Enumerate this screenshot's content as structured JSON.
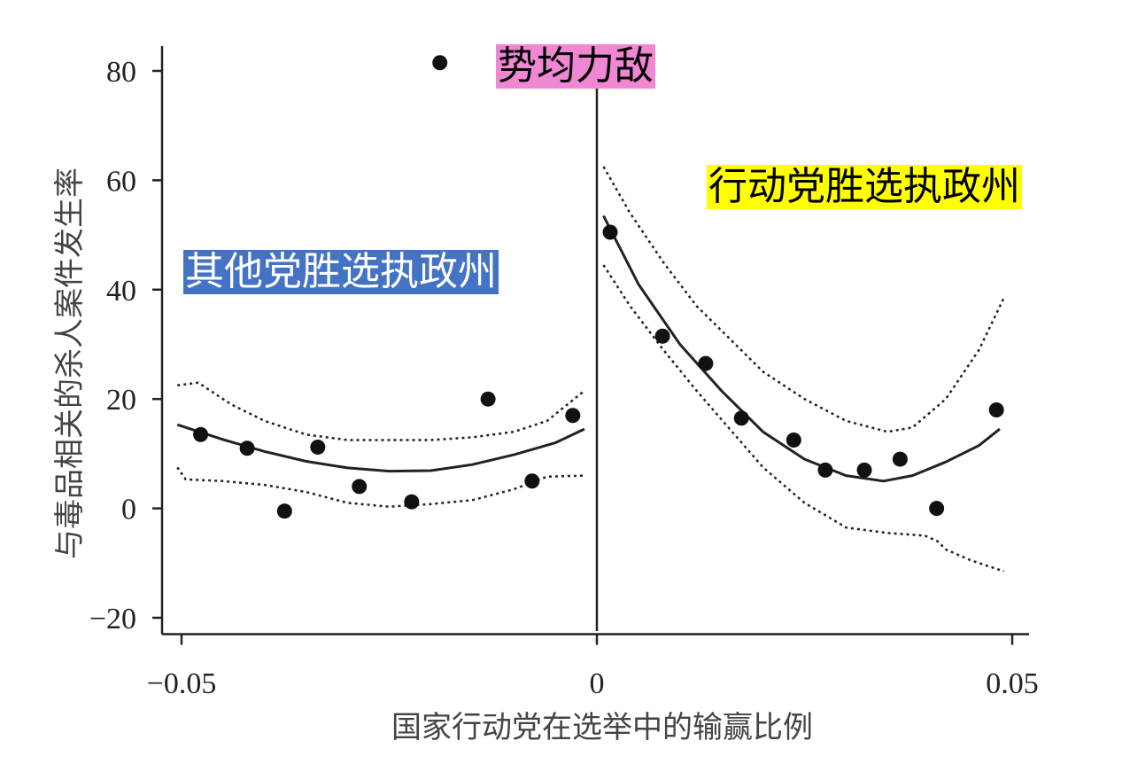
{
  "chart_data": {
    "type": "scatter",
    "title": "",
    "xlabel": "国家行动党在选举中的输赢比例",
    "ylabel": "与毒品相关的杀人案件发生率",
    "xlim": [
      -0.052,
      0.052
    ],
    "ylim": [
      -23,
      84
    ],
    "x_ticks": [
      -0.05,
      0,
      0.05
    ],
    "x_tick_labels": [
      "−0.05",
      "0",
      "0.05"
    ],
    "y_ticks": [
      80,
      60,
      40,
      20,
      0,
      -20
    ],
    "y_tick_labels": [
      "80",
      "60",
      "40",
      "20",
      "0",
      "−20"
    ],
    "cutoff_x": 0,
    "points": [
      {
        "x": -0.0477,
        "y": 13.5
      },
      {
        "x": -0.0421,
        "y": 11.0
      },
      {
        "x": -0.0376,
        "y": -0.5
      },
      {
        "x": -0.0336,
        "y": 11.2
      },
      {
        "x": -0.0286,
        "y": 4.0
      },
      {
        "x": -0.0223,
        "y": 1.2
      },
      {
        "x": -0.0189,
        "y": 81.5
      },
      {
        "x": -0.0131,
        "y": 20.0
      },
      {
        "x": -0.0078,
        "y": 5.0
      },
      {
        "x": -0.0029,
        "y": 17.0
      },
      {
        "x": 0.0016,
        "y": 50.5
      },
      {
        "x": 0.0079,
        "y": 31.5
      },
      {
        "x": 0.0131,
        "y": 26.5
      },
      {
        "x": 0.0174,
        "y": 16.5
      },
      {
        "x": 0.0237,
        "y": 12.5
      },
      {
        "x": 0.0275,
        "y": 7.0
      },
      {
        "x": 0.0322,
        "y": 7.0
      },
      {
        "x": 0.0365,
        "y": 9.0
      },
      {
        "x": 0.0409,
        "y": 0.0
      },
      {
        "x": 0.0481,
        "y": 18.0
      }
    ],
    "series": [
      {
        "name": "fit-left",
        "style": "solid",
        "x": [
          -0.0505,
          -0.045,
          -0.04,
          -0.035,
          -0.03,
          -0.025,
          -0.02,
          -0.015,
          -0.01,
          -0.005,
          -0.0015
        ],
        "y": [
          15.3,
          12.6,
          10.4,
          8.6,
          7.4,
          6.8,
          6.9,
          8.0,
          9.8,
          12.0,
          14.5
        ]
      },
      {
        "name": "ci-left-upper",
        "style": "dotted",
        "x": [
          -0.0505,
          -0.048,
          -0.044,
          -0.04,
          -0.035,
          -0.03,
          -0.025,
          -0.02,
          -0.015,
          -0.01,
          -0.006,
          -0.0015
        ],
        "y": [
          22.5,
          23.0,
          19.0,
          16.0,
          13.5,
          12.5,
          12.5,
          12.5,
          13.0,
          14.0,
          16.0,
          21.5
        ]
      },
      {
        "name": "ci-left-lower",
        "style": "dotted",
        "x": [
          -0.0505,
          -0.0495,
          -0.045,
          -0.04,
          -0.035,
          -0.03,
          -0.025,
          -0.02,
          -0.015,
          -0.01,
          -0.006,
          -0.0015
        ],
        "y": [
          7.5,
          5.3,
          5.0,
          4.3,
          3.0,
          1.0,
          0.3,
          0.8,
          1.5,
          3.5,
          5.8,
          6.0
        ]
      },
      {
        "name": "fit-right",
        "style": "solid",
        "x": [
          0.0008,
          0.005,
          0.01,
          0.015,
          0.02,
          0.025,
          0.03,
          0.0345,
          0.038,
          0.042,
          0.046,
          0.0485
        ],
        "y": [
          53.5,
          41.0,
          30.0,
          21.5,
          14.0,
          9.0,
          6.0,
          5.0,
          6.0,
          8.5,
          11.5,
          14.5
        ]
      },
      {
        "name": "ci-right-upper",
        "style": "dotted",
        "x": [
          0.0008,
          0.004,
          0.008,
          0.012,
          0.016,
          0.02,
          0.025,
          0.03,
          0.035,
          0.038,
          0.042,
          0.046,
          0.049
        ],
        "y": [
          62.5,
          54.0,
          45.0,
          37.0,
          31.0,
          25.0,
          20.0,
          16.0,
          14.0,
          14.8,
          20.0,
          29.0,
          38.5
        ]
      },
      {
        "name": "ci-right-lower",
        "style": "dotted",
        "x": [
          0.0008,
          0.004,
          0.008,
          0.012,
          0.016,
          0.02,
          0.025,
          0.03,
          0.035,
          0.0395,
          0.041,
          0.042,
          0.045,
          0.049
        ],
        "y": [
          44.5,
          37.0,
          29.0,
          21.5,
          14.5,
          7.5,
          1.0,
          -3.5,
          -4.5,
          -5.0,
          -6.0,
          -7.5,
          -9.5,
          -11.5
        ]
      }
    ]
  },
  "annotations": {
    "tie_label": "势均力敌",
    "tie_color": "#ef87d2",
    "pan_label": "行动党胜选执政州",
    "pan_color": "#ffff00",
    "other_label": "其他党胜选执政州",
    "other_color": "#4472c4",
    "other_text_color": "#ffffff"
  }
}
